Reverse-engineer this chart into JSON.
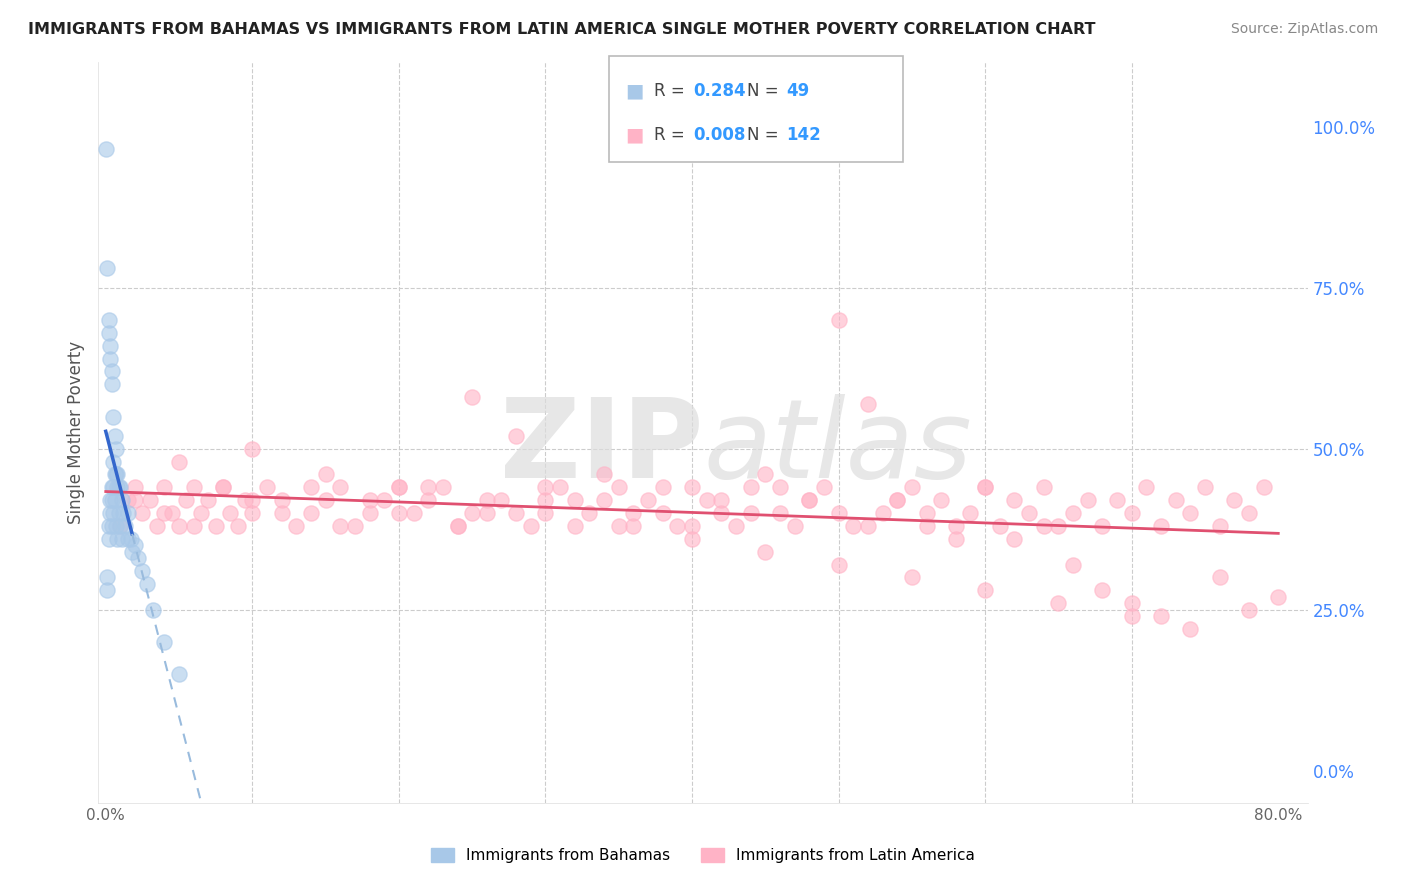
{
  "title": "IMMIGRANTS FROM BAHAMAS VS IMMIGRANTS FROM LATIN AMERICA SINGLE MOTHER POVERTY CORRELATION CHART",
  "source_text": "Source: ZipAtlas.com",
  "ylabel": "Single Mother Poverty",
  "legend_R1": "0.284",
  "legend_N1": "49",
  "legend_R2": "0.008",
  "legend_N2": "142",
  "color_bahamas": "#A8C8E8",
  "color_latin": "#FFB3C6",
  "line_color_bahamas": "#3366CC",
  "line_dashed_color": "#99BBDD",
  "line_color_latin": "#E05070",
  "watermark_color": "#E8E8E8",
  "background_color": "#FFFFFF",
  "x_tick_positions": [
    0.0,
    0.1,
    0.2,
    0.3,
    0.4,
    0.5,
    0.6,
    0.7,
    0.8
  ],
  "x_tick_labels": [
    "0.0%",
    "",
    "",
    "",
    "",
    "",
    "",
    "",
    "80.0%"
  ],
  "y_tick_positions": [
    0.0,
    0.25,
    0.5,
    0.75,
    1.0
  ],
  "y_right_labels": [
    "0.0%",
    "25.0%",
    "50.0%",
    "75.0%",
    "100.0%"
  ],
  "xlim": [
    -0.005,
    0.82
  ],
  "ylim": [
    -0.05,
    1.1
  ],
  "bahamas_x": [
    0.0005,
    0.001,
    0.001,
    0.001,
    0.002,
    0.002,
    0.002,
    0.002,
    0.003,
    0.003,
    0.003,
    0.003,
    0.004,
    0.004,
    0.004,
    0.004,
    0.004,
    0.005,
    0.005,
    0.005,
    0.005,
    0.006,
    0.006,
    0.006,
    0.007,
    0.007,
    0.007,
    0.008,
    0.008,
    0.008,
    0.009,
    0.009,
    0.01,
    0.01,
    0.011,
    0.011,
    0.012,
    0.013,
    0.015,
    0.015,
    0.017,
    0.018,
    0.02,
    0.022,
    0.025,
    0.028,
    0.032,
    0.04,
    0.05
  ],
  "bahamas_y": [
    0.965,
    0.78,
    0.3,
    0.28,
    0.7,
    0.68,
    0.38,
    0.36,
    0.66,
    0.64,
    0.42,
    0.4,
    0.62,
    0.6,
    0.44,
    0.42,
    0.38,
    0.55,
    0.48,
    0.44,
    0.4,
    0.52,
    0.46,
    0.42,
    0.5,
    0.46,
    0.38,
    0.46,
    0.44,
    0.36,
    0.44,
    0.4,
    0.44,
    0.38,
    0.42,
    0.36,
    0.4,
    0.38,
    0.4,
    0.36,
    0.36,
    0.34,
    0.35,
    0.33,
    0.31,
    0.29,
    0.25,
    0.2,
    0.15
  ],
  "latin_x": [
    0.01,
    0.015,
    0.02,
    0.025,
    0.03,
    0.035,
    0.04,
    0.045,
    0.05,
    0.055,
    0.06,
    0.065,
    0.07,
    0.075,
    0.08,
    0.085,
    0.09,
    0.095,
    0.1,
    0.11,
    0.12,
    0.13,
    0.14,
    0.15,
    0.16,
    0.17,
    0.18,
    0.19,
    0.2,
    0.21,
    0.22,
    0.23,
    0.24,
    0.25,
    0.26,
    0.27,
    0.28,
    0.29,
    0.3,
    0.31,
    0.32,
    0.33,
    0.34,
    0.35,
    0.36,
    0.37,
    0.38,
    0.39,
    0.4,
    0.41,
    0.42,
    0.43,
    0.44,
    0.45,
    0.46,
    0.47,
    0.48,
    0.49,
    0.5,
    0.51,
    0.52,
    0.53,
    0.54,
    0.55,
    0.56,
    0.57,
    0.58,
    0.59,
    0.6,
    0.61,
    0.62,
    0.63,
    0.64,
    0.65,
    0.66,
    0.67,
    0.68,
    0.69,
    0.7,
    0.71,
    0.72,
    0.73,
    0.74,
    0.75,
    0.76,
    0.77,
    0.78,
    0.79,
    0.02,
    0.04,
    0.06,
    0.08,
    0.1,
    0.12,
    0.14,
    0.16,
    0.18,
    0.2,
    0.22,
    0.24,
    0.26,
    0.28,
    0.3,
    0.32,
    0.34,
    0.36,
    0.38,
    0.4,
    0.42,
    0.44,
    0.46,
    0.48,
    0.5,
    0.52,
    0.54,
    0.56,
    0.58,
    0.6,
    0.62,
    0.64,
    0.66,
    0.68,
    0.7,
    0.72,
    0.74,
    0.76,
    0.78,
    0.8,
    0.05,
    0.1,
    0.15,
    0.2,
    0.25,
    0.3,
    0.35,
    0.4,
    0.45,
    0.5,
    0.55,
    0.6,
    0.65,
    0.7
  ],
  "latin_y": [
    0.38,
    0.42,
    0.44,
    0.4,
    0.42,
    0.38,
    0.44,
    0.4,
    0.38,
    0.42,
    0.44,
    0.4,
    0.42,
    0.38,
    0.44,
    0.4,
    0.38,
    0.42,
    0.4,
    0.44,
    0.42,
    0.38,
    0.4,
    0.42,
    0.44,
    0.38,
    0.4,
    0.42,
    0.44,
    0.4,
    0.42,
    0.44,
    0.38,
    0.58,
    0.4,
    0.42,
    0.52,
    0.38,
    0.4,
    0.44,
    0.42,
    0.4,
    0.46,
    0.44,
    0.38,
    0.42,
    0.4,
    0.38,
    0.44,
    0.42,
    0.4,
    0.38,
    0.44,
    0.46,
    0.4,
    0.38,
    0.42,
    0.44,
    0.4,
    0.38,
    0.57,
    0.4,
    0.42,
    0.44,
    0.38,
    0.42,
    0.36,
    0.4,
    0.44,
    0.38,
    0.42,
    0.4,
    0.44,
    0.38,
    0.4,
    0.42,
    0.38,
    0.42,
    0.4,
    0.44,
    0.38,
    0.42,
    0.4,
    0.44,
    0.38,
    0.42,
    0.4,
    0.44,
    0.42,
    0.4,
    0.38,
    0.44,
    0.42,
    0.4,
    0.44,
    0.38,
    0.42,
    0.4,
    0.44,
    0.38,
    0.42,
    0.4,
    0.44,
    0.38,
    0.42,
    0.4,
    0.44,
    0.38,
    0.42,
    0.4,
    0.44,
    0.42,
    0.7,
    0.38,
    0.42,
    0.4,
    0.38,
    0.44,
    0.36,
    0.38,
    0.32,
    0.28,
    0.26,
    0.24,
    0.22,
    0.3,
    0.25,
    0.27,
    0.48,
    0.5,
    0.46,
    0.44,
    0.4,
    0.42,
    0.38,
    0.36,
    0.34,
    0.32,
    0.3,
    0.28,
    0.26,
    0.24
  ]
}
